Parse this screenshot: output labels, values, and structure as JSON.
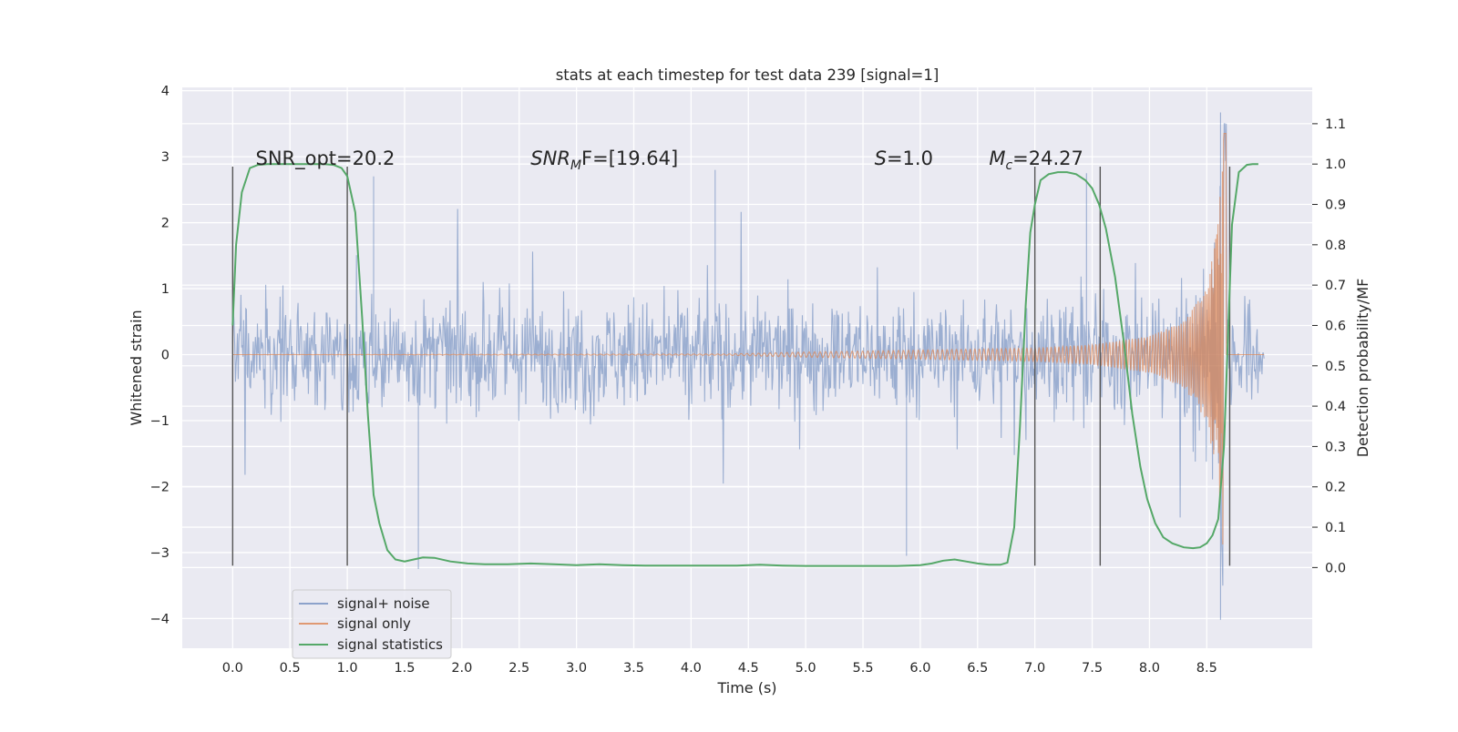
{
  "chart_data": {
    "type": "line",
    "title": "stats at each timestep for test data 239 [signal=1]",
    "xlabel": "Time (s)",
    "ylabel": "Whitened strain",
    "ylabel_right": "Detection probability/MF",
    "xlim": [
      -0.44,
      9.42
    ],
    "ylim": [
      -4.45,
      4.05
    ],
    "ylim_right": [
      -0.2,
      1.19
    ],
    "x_ticks": [
      "0.0",
      "0.5",
      "1.0",
      "1.5",
      "2.0",
      "2.5",
      "3.0",
      "3.5",
      "4.0",
      "4.5",
      "5.0",
      "5.5",
      "6.0",
      "6.5",
      "7.0",
      "7.5",
      "8.0",
      "8.5"
    ],
    "y_ticks": [
      "4",
      "3",
      "2",
      "1",
      "0",
      "−1",
      "−2",
      "−3",
      "−4"
    ],
    "y_right_ticks": [
      "1.1",
      "1.0",
      "0.9",
      "0.8",
      "0.7",
      "0.6",
      "0.5",
      "0.4",
      "0.3",
      "0.2",
      "0.1",
      "0.0"
    ],
    "grid": true,
    "legend_position": "lower-left",
    "annotations": [
      {
        "text": "SNR_opt=20.2",
        "x": 0.2
      },
      {
        "text": "SNR",
        "sub": "M",
        "suffix": "F=[19.64]",
        "italic": true,
        "x": 2.6
      },
      {
        "text": "S",
        "suffix": "=1.0",
        "italic": true,
        "x": 5.6
      },
      {
        "text": "M",
        "sub": "c",
        "suffix": "=24.27",
        "italic": true,
        "x": 6.6
      }
    ],
    "vertical_lines": [
      0.0,
      1.0,
      7.0,
      7.57,
      8.7
    ],
    "series": [
      {
        "name": "signal+ noise",
        "color": "#4c72b0",
        "opacity": 0.5,
        "t_start": 0.0,
        "t_end": 9.0,
        "typical_abs": 1.0,
        "max_excursion": 3.5,
        "extremes": [
          [
            4.21,
            2.8
          ],
          [
            1.23,
            2.7
          ],
          [
            1.62,
            -3.25
          ],
          [
            5.88,
            -3.05
          ],
          [
            8.62,
            3.67
          ],
          [
            8.62,
            -4.02
          ],
          [
            7.45,
            2.75
          ]
        ]
      },
      {
        "name": "signal only",
        "color": "#dd8452",
        "opacity": 0.7,
        "t_coalescence": 8.65,
        "envelope": [
          [
            0.0,
            0.0
          ],
          [
            4.3,
            0.01
          ],
          [
            5.0,
            0.04
          ],
          [
            6.0,
            0.07
          ],
          [
            7.0,
            0.1
          ],
          [
            7.5,
            0.15
          ],
          [
            8.0,
            0.28
          ],
          [
            8.3,
            0.5
          ],
          [
            8.5,
            1.0
          ],
          [
            8.6,
            2.0
          ],
          [
            8.65,
            3.45
          ]
        ]
      },
      {
        "name": "signal statistics",
        "color": "#55a868",
        "t": [
          0.0,
          0.03,
          0.08,
          0.15,
          0.22,
          0.3,
          0.4,
          0.5,
          0.6,
          0.7,
          0.8,
          0.88,
          0.95,
          1.0,
          1.07,
          1.13,
          1.18,
          1.23,
          1.28,
          1.35,
          1.42,
          1.5,
          1.58,
          1.66,
          1.76,
          1.9,
          2.05,
          2.2,
          2.4,
          2.6,
          2.8,
          3.0,
          3.2,
          3.4,
          3.6,
          3.8,
          4.0,
          4.2,
          4.4,
          4.6,
          4.8,
          5.0,
          5.2,
          5.4,
          5.6,
          5.8,
          6.0,
          6.1,
          6.2,
          6.3,
          6.4,
          6.5,
          6.6,
          6.7,
          6.76,
          6.82,
          6.87,
          6.92,
          6.96,
          7.0,
          7.05,
          7.12,
          7.2,
          7.28,
          7.36,
          7.44,
          7.5,
          7.56,
          7.62,
          7.7,
          7.78,
          7.85,
          7.92,
          7.98,
          8.05,
          8.12,
          8.2,
          8.3,
          8.38,
          8.44,
          8.5,
          8.55,
          8.6,
          8.65,
          8.72,
          8.78,
          8.85,
          8.9,
          8.95
        ],
        "values": [
          0.6,
          0.8,
          0.93,
          0.99,
          0.998,
          1.0,
          1.0,
          1.0,
          1.0,
          1.0,
          1.0,
          0.998,
          0.99,
          0.97,
          0.88,
          0.62,
          0.38,
          0.18,
          0.11,
          0.043,
          0.02,
          0.015,
          0.02,
          0.025,
          0.024,
          0.015,
          0.01,
          0.008,
          0.008,
          0.01,
          0.008,
          0.006,
          0.008,
          0.006,
          0.005,
          0.005,
          0.005,
          0.005,
          0.005,
          0.007,
          0.005,
          0.004,
          0.004,
          0.004,
          0.004,
          0.004,
          0.006,
          0.01,
          0.017,
          0.02,
          0.015,
          0.01,
          0.007,
          0.007,
          0.012,
          0.1,
          0.35,
          0.65,
          0.83,
          0.9,
          0.96,
          0.975,
          0.98,
          0.98,
          0.975,
          0.96,
          0.94,
          0.9,
          0.84,
          0.72,
          0.55,
          0.38,
          0.25,
          0.17,
          0.11,
          0.075,
          0.06,
          0.05,
          0.048,
          0.05,
          0.06,
          0.08,
          0.12,
          0.3,
          0.85,
          0.98,
          0.998,
          1.0,
          1.0
        ]
      }
    ]
  }
}
